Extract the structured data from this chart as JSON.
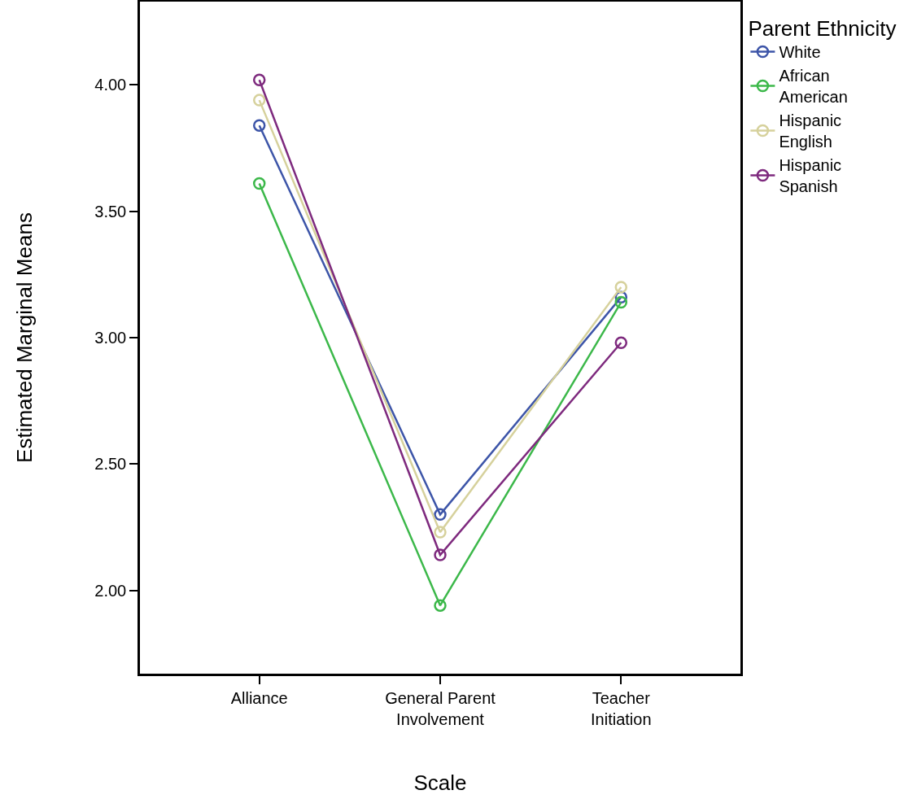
{
  "chart_data": {
    "type": "line",
    "xlabel": "Scale",
    "ylabel": "Estimated Marginal Means",
    "legend_title": "Parent Ethnicity",
    "categories": [
      "Alliance",
      "General Parent Involvement",
      "Teacher Initiation"
    ],
    "series": [
      {
        "name": "White",
        "color": "#3d55a8",
        "values": [
          3.84,
          2.3,
          3.16
        ]
      },
      {
        "name": "African American",
        "color": "#3cb84a",
        "values": [
          3.61,
          1.94,
          3.14
        ]
      },
      {
        "name": "Hispanic English",
        "color": "#d6d19c",
        "values": [
          3.94,
          2.23,
          3.2
        ]
      },
      {
        "name": "Hispanic Spanish",
        "color": "#7e2a7e",
        "values": [
          4.02,
          2.14,
          2.98
        ]
      }
    ],
    "ylim": [
      1.67,
      4.33
    ],
    "yticks": [
      {
        "value": 2,
        "label": "2.00"
      },
      {
        "value": 2.5,
        "label": "2.50"
      },
      {
        "value": 3,
        "label": "3.00"
      },
      {
        "value": 3.5,
        "label": "3.50"
      },
      {
        "value": 4,
        "label": "4.00"
      }
    ],
    "grid": false,
    "legend": "right",
    "marker": "circle",
    "line_style": "solid"
  }
}
